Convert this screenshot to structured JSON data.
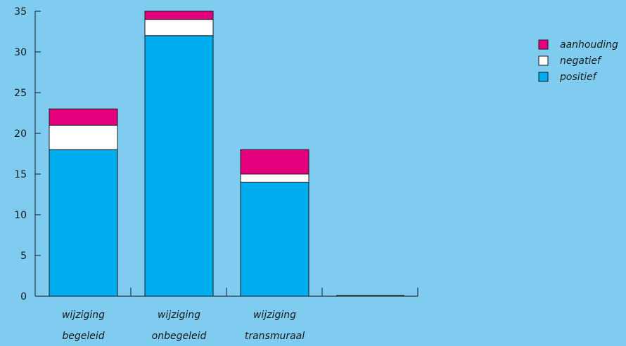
{
  "chart_data": {
    "type": "bar",
    "stacked": true,
    "categories": [
      [
        "wijziging",
        "begeleid"
      ],
      [
        "wijziging",
        "onbegeleid"
      ],
      [
        "wijziging",
        "transmuraal"
      ],
      [
        "",
        ""
      ]
    ],
    "series": [
      {
        "name": "positief",
        "color": "#00aeef",
        "values": [
          18,
          32,
          14,
          0
        ]
      },
      {
        "name": "negatief",
        "color": "#ffffff",
        "values": [
          3,
          2,
          1,
          0
        ]
      },
      {
        "name": "aanhouding",
        "color": "#e5007d",
        "values": [
          2,
          1,
          3,
          0
        ]
      }
    ],
    "legend_order": [
      "aanhouding",
      "negatief",
      "positief"
    ],
    "legend_position": "top-right",
    "ylim": [
      0,
      35
    ],
    "yticks": [
      0,
      5,
      10,
      15,
      20,
      25,
      30,
      35
    ],
    "grid": false,
    "title": "",
    "xlabel": "",
    "ylabel": ""
  }
}
